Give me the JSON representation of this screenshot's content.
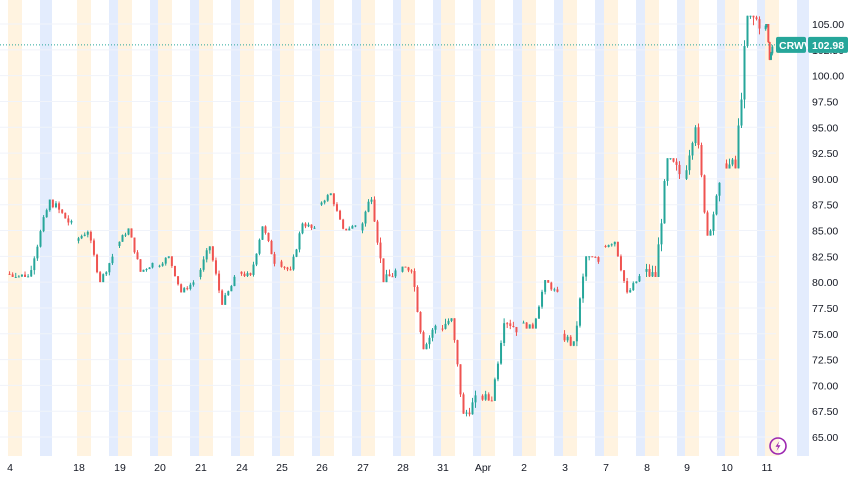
{
  "chart_data": {
    "type": "candlestick",
    "symbol": "CRWV",
    "last_price": "102.98",
    "ylim": [
      62.5,
      107.5
    ],
    "y_ticks": [
      "65.00",
      "67.50",
      "70.00",
      "72.50",
      "75.00",
      "77.50",
      "80.00",
      "82.50",
      "85.00",
      "87.50",
      "90.00",
      "92.50",
      "95.00",
      "97.50",
      "100.00",
      "102.50",
      "105.00"
    ],
    "x_ticks": [
      "4",
      "18",
      "19",
      "20",
      "21",
      "24",
      "25",
      "26",
      "27",
      "28",
      "31",
      "Apr",
      "2",
      "3",
      "7",
      "8",
      "9",
      "10",
      "11"
    ],
    "grid": true,
    "session_bands": true,
    "colors": {
      "up": "#26a69a",
      "down": "#ef5350",
      "last_price_tag": "#26a69a",
      "premarket_band": "#fff3e0",
      "afterhours_band": "#e3ecfd",
      "grid": "#f0f3fa",
      "text": "#131722",
      "logo": "#9c27b0"
    },
    "daily_ohlc": [
      {
        "day": "4",
        "open": 80.8,
        "high": 88.0,
        "low": 80.5,
        "close": 85.5
      },
      {
        "day": "18",
        "open": 84.0,
        "high": 85.0,
        "low": 80.0,
        "close": 82.5
      },
      {
        "day": "19",
        "open": 83.5,
        "high": 85.2,
        "low": 81.0,
        "close": 81.8
      },
      {
        "day": "20",
        "open": 81.5,
        "high": 82.5,
        "low": 79.0,
        "close": 80.0
      },
      {
        "day": "21",
        "open": 80.5,
        "high": 83.5,
        "low": 77.8,
        "close": 80.2
      },
      {
        "day": "24",
        "open": 81.0,
        "high": 85.5,
        "low": 80.5,
        "close": 82.0
      },
      {
        "day": "25",
        "open": 82.0,
        "high": 85.8,
        "low": 81.0,
        "close": 85.0
      },
      {
        "day": "26",
        "open": 87.5,
        "high": 88.6,
        "low": 85.0,
        "close": 85.5
      },
      {
        "day": "27",
        "open": 85.0,
        "high": 88.5,
        "low": 80.0,
        "close": 81.0
      },
      {
        "day": "28",
        "open": 81.0,
        "high": 81.5,
        "low": 73.5,
        "close": 75.8
      },
      {
        "day": "31",
        "open": 75.5,
        "high": 76.5,
        "low": 67.0,
        "close": 68.5
      },
      {
        "day": "Apr",
        "open": 69.0,
        "high": 76.5,
        "low": 68.5,
        "close": 75.5
      },
      {
        "day": "2",
        "open": 76.0,
        "high": 80.2,
        "low": 75.5,
        "close": 78.8
      },
      {
        "day": "3",
        "open": 75.0,
        "high": 82.5,
        "low": 73.8,
        "close": 82.0
      },
      {
        "day": "7",
        "open": 83.5,
        "high": 84.0,
        "low": 78.8,
        "close": 80.5
      },
      {
        "day": "8",
        "open": 81.0,
        "high": 92.0,
        "low": 80.5,
        "close": 90.5
      },
      {
        "day": "9",
        "open": 90.0,
        "high": 95.5,
        "low": 84.5,
        "close": 89.0
      },
      {
        "day": "10",
        "open": 91.5,
        "high": 105.8,
        "low": 91.0,
        "close": 105.2
      },
      {
        "day": "11",
        "open": 104.5,
        "high": 105.0,
        "low": 101.5,
        "close": 102.98
      }
    ]
  }
}
